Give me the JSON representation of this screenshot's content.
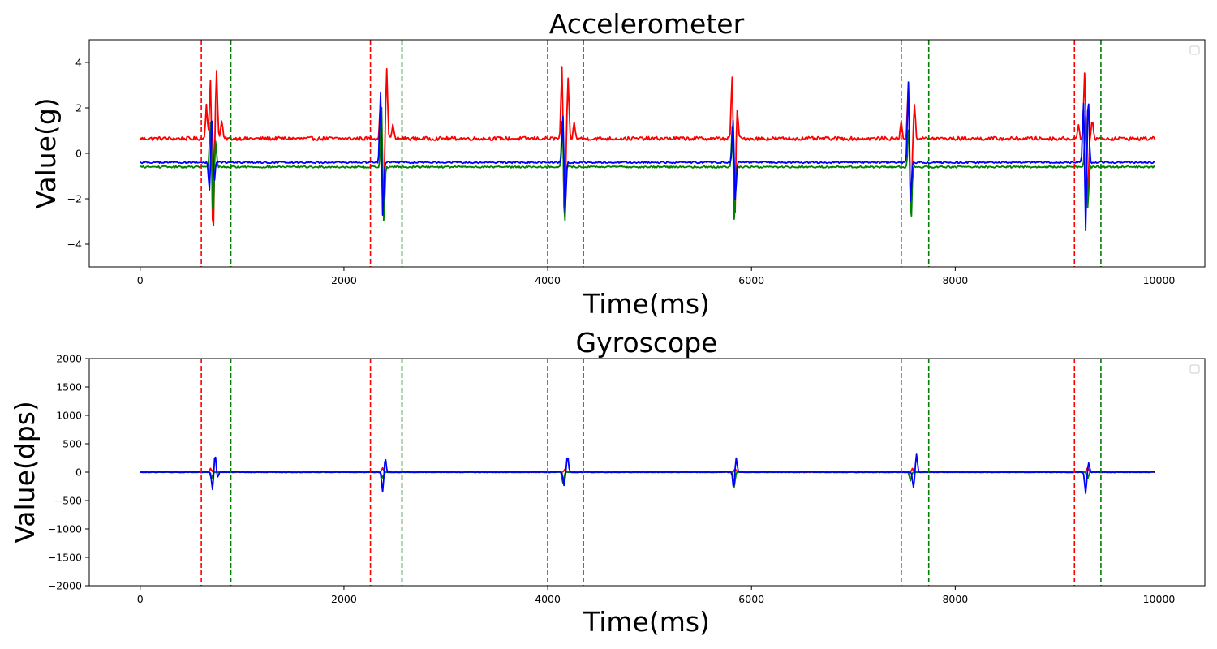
{
  "chart_data": [
    {
      "type": "line",
      "title": "Accelerometer",
      "xlabel": "Time(ms)",
      "ylabel": "Value(g)",
      "xlim": [
        -500,
        10450
      ],
      "ylim": [
        -5,
        5
      ],
      "xticks": [
        0,
        2000,
        4000,
        6000,
        8000,
        10000
      ],
      "xtick_labels": [
        "0",
        "2000",
        "4000",
        "6000",
        "8000",
        "10000"
      ],
      "yticks": [
        -4,
        -2,
        0,
        2,
        4
      ],
      "ytick_labels": [
        "−4",
        "−2",
        "0",
        "2",
        "4"
      ],
      "grid": false,
      "legend": "upper-right (empty)",
      "event_starts": [
        600,
        2260,
        4000,
        7470,
        9170
      ],
      "event_ends": [
        890,
        2570,
        4350,
        7740,
        9430
      ],
      "event_start_color": "#ff0000",
      "event_end_color": "#008000",
      "series": [
        {
          "color": "#ff0000",
          "baseline": 0.65,
          "noise": 0.08,
          "spikes": [
            {
              "t": 650,
              "a": 1.5
            },
            {
              "t": 690,
              "a": 2.6
            },
            {
              "t": 715,
              "a": -4.4
            },
            {
              "t": 750,
              "a": 3.0
            },
            {
              "t": 800,
              "a": 0.8
            },
            {
              "t": 2360,
              "a": 1.8
            },
            {
              "t": 2385,
              "a": -3.8
            },
            {
              "t": 2420,
              "a": 3.0
            },
            {
              "t": 2480,
              "a": 0.6
            },
            {
              "t": 4140,
              "a": 3.2
            },
            {
              "t": 4165,
              "a": -3.9
            },
            {
              "t": 4200,
              "a": 2.6
            },
            {
              "t": 4260,
              "a": 0.7
            },
            {
              "t": 5810,
              "a": 2.8
            },
            {
              "t": 5835,
              "a": -3.9
            },
            {
              "t": 5860,
              "a": 1.4
            },
            {
              "t": 7470,
              "a": 0.7
            },
            {
              "t": 7540,
              "a": 2.5
            },
            {
              "t": 7565,
              "a": -3.5
            },
            {
              "t": 7600,
              "a": 1.5
            },
            {
              "t": 9210,
              "a": 0.6
            },
            {
              "t": 9270,
              "a": 2.9
            },
            {
              "t": 9300,
              "a": -2.8
            },
            {
              "t": 9345,
              "a": 0.9
            }
          ]
        },
        {
          "color": "#008000",
          "baseline": -0.6,
          "noise": 0.04,
          "spikes": [
            {
              "t": 690,
              "a": 2.0
            },
            {
              "t": 715,
              "a": -2.3
            },
            {
              "t": 740,
              "a": 1.2
            },
            {
              "t": 2370,
              "a": 2.8
            },
            {
              "t": 2390,
              "a": -2.6
            },
            {
              "t": 4145,
              "a": 2.4
            },
            {
              "t": 4165,
              "a": -2.8
            },
            {
              "t": 5815,
              "a": 2.4
            },
            {
              "t": 5830,
              "a": -2.9
            },
            {
              "t": 7545,
              "a": 2.0
            },
            {
              "t": 7565,
              "a": -2.6
            },
            {
              "t": 9280,
              "a": 2.4
            },
            {
              "t": 9300,
              "a": -2.0
            }
          ]
        },
        {
          "color": "#0000ff",
          "baseline": -0.4,
          "noise": 0.04,
          "spikes": [
            {
              "t": 680,
              "a": -1.3
            },
            {
              "t": 705,
              "a": 2.3
            },
            {
              "t": 725,
              "a": -1.0
            },
            {
              "t": 2360,
              "a": 3.3
            },
            {
              "t": 2380,
              "a": -2.6
            },
            {
              "t": 4150,
              "a": 2.2
            },
            {
              "t": 4170,
              "a": -2.4
            },
            {
              "t": 5820,
              "a": 2.0
            },
            {
              "t": 5840,
              "a": -1.8
            },
            {
              "t": 7540,
              "a": 3.7
            },
            {
              "t": 7560,
              "a": -2.0
            },
            {
              "t": 9260,
              "a": 2.9
            },
            {
              "t": 9280,
              "a": -3.3
            },
            {
              "t": 9305,
              "a": 3.0
            }
          ]
        }
      ]
    },
    {
      "type": "line",
      "title": "Gyroscope",
      "xlabel": "Time(ms)",
      "ylabel": "Value(dps)",
      "xlim": [
        -500,
        10450
      ],
      "ylim": [
        -2000,
        2000
      ],
      "xticks": [
        0,
        2000,
        4000,
        6000,
        8000,
        10000
      ],
      "xtick_labels": [
        "0",
        "2000",
        "4000",
        "6000",
        "8000",
        "10000"
      ],
      "yticks": [
        -2000,
        -1500,
        -1000,
        -500,
        0,
        500,
        1000,
        1500,
        2000
      ],
      "ytick_labels": [
        "−2000",
        "−1500",
        "−1000",
        "−500",
        "0",
        "500",
        "1000",
        "1500",
        "2000"
      ],
      "grid": false,
      "legend": "upper-right (empty)",
      "event_starts": [
        600,
        2260,
        4000,
        7470,
        9170
      ],
      "event_ends": [
        890,
        2570,
        4350,
        7740,
        9430
      ],
      "event_start_color": "#ff0000",
      "event_end_color": "#008000",
      "series": [
        {
          "color": "#ff0000",
          "baseline": 0,
          "noise": 6,
          "spikes": [
            {
              "t": 690,
              "a": 60
            },
            {
              "t": 2380,
              "a": 70
            },
            {
              "t": 4170,
              "a": 50
            },
            {
              "t": 5840,
              "a": 60
            },
            {
              "t": 7580,
              "a": 60
            },
            {
              "t": 9300,
              "a": 80
            }
          ]
        },
        {
          "color": "#008000",
          "baseline": 0,
          "noise": 5,
          "spikes": [
            {
              "t": 700,
              "a": -120
            },
            {
              "t": 2380,
              "a": -100
            },
            {
              "t": 4150,
              "a": -200
            },
            {
              "t": 5830,
              "a": -260
            },
            {
              "t": 7560,
              "a": -150
            },
            {
              "t": 9300,
              "a": -120
            }
          ]
        },
        {
          "color": "#0000ff",
          "baseline": 0,
          "noise": 6,
          "spikes": [
            {
              "t": 710,
              "a": -310
            },
            {
              "t": 735,
              "a": 320
            },
            {
              "t": 760,
              "a": -90
            },
            {
              "t": 2380,
              "a": -350
            },
            {
              "t": 2405,
              "a": 250
            },
            {
              "t": 4160,
              "a": -230
            },
            {
              "t": 4195,
              "a": 290
            },
            {
              "t": 5825,
              "a": -280
            },
            {
              "t": 5850,
              "a": 260
            },
            {
              "t": 7590,
              "a": -270
            },
            {
              "t": 7620,
              "a": 310
            },
            {
              "t": 9280,
              "a": -370
            },
            {
              "t": 9310,
              "a": 160
            }
          ]
        }
      ]
    }
  ]
}
